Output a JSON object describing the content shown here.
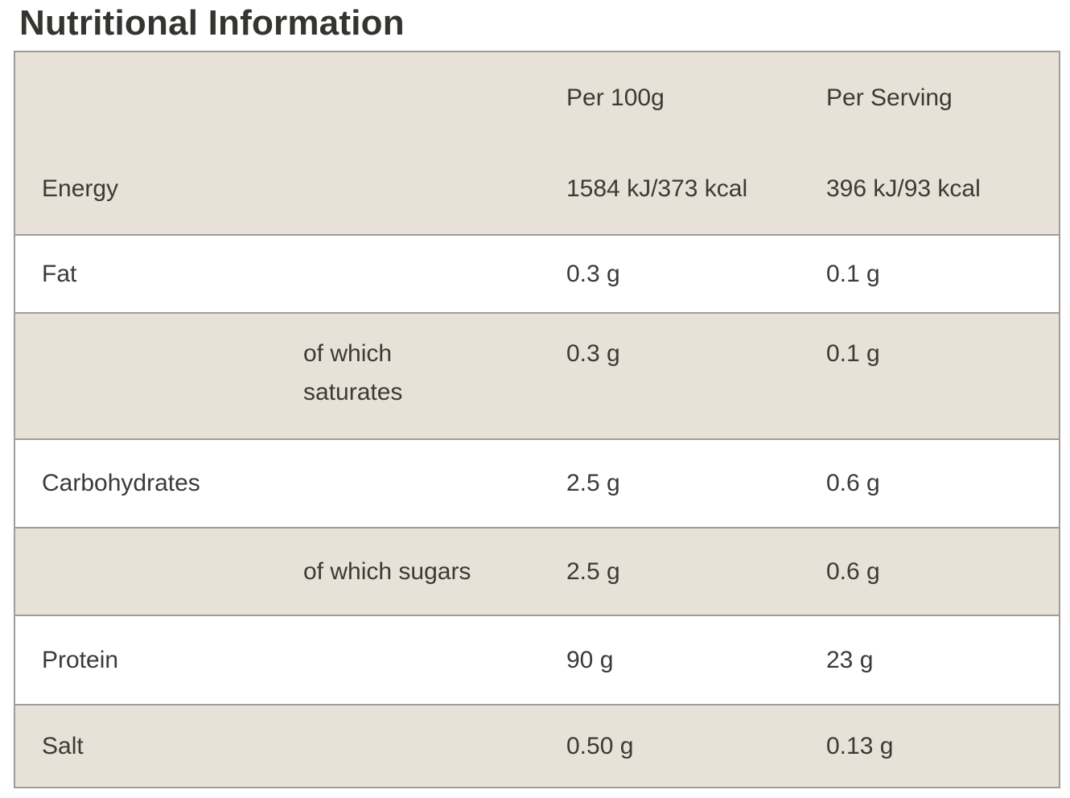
{
  "title": "Nutritional Information",
  "table": {
    "headers": {
      "label": "",
      "per_100g": "Per 100g",
      "per_serving": "Per Serving"
    },
    "rows": [
      {
        "label": "Energy",
        "per_100g": "1584 kJ/373 kcal",
        "per_serving": "396 kJ/93 kcal"
      },
      {
        "label": "Fat",
        "per_100g": "0.3 g",
        "per_serving": "0.1 g"
      },
      {
        "label": "of which\nsaturates",
        "per_100g": "0.3 g",
        "per_serving": "0.1 g"
      },
      {
        "label": "Carbohydrates",
        "per_100g": "2.5 g",
        "per_serving": "0.6 g"
      },
      {
        "label": "of which sugars",
        "per_100g": "2.5 g",
        "per_serving": "0.6 g"
      },
      {
        "label": "Protein",
        "per_100g": "90 g",
        "per_serving": "23 g"
      },
      {
        "label": "Salt",
        "per_100g": "0.50 g",
        "per_serving": "0.13 g"
      }
    ],
    "colors": {
      "row_shaded_background": "#e8e1d7",
      "row_plain_background": "#ffffff",
      "border": "#9d9d9b",
      "text": "#3b3a37",
      "title_text": "#363430"
    }
  }
}
